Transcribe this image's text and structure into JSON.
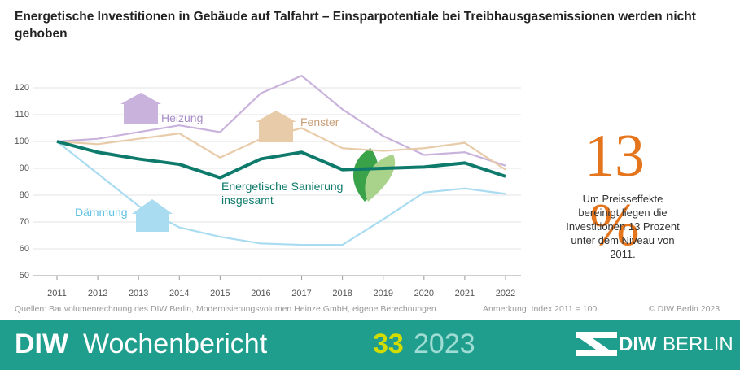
{
  "chart_data": {
    "type": "line",
    "title": "Energetische Investitionen in Gebäude auf Talfahrt – Einsparpotentiale bei Treibhausgasemissionen werden nicht gehoben",
    "categories": [
      "2011",
      "2012",
      "2013",
      "2014",
      "2015",
      "2016",
      "2017",
      "2018",
      "2019",
      "2020",
      "2021",
      "2022"
    ],
    "series": [
      {
        "name": "Heizung",
        "color": "#c9b3dc",
        "values": [
          100,
          101,
          103.5,
          106,
          103.5,
          118,
          124.5,
          112,
          102,
          95,
          96,
          91
        ]
      },
      {
        "name": "Fenster",
        "color": "#e8cba9",
        "values": [
          100,
          99,
          101,
          103,
          94,
          101,
          105,
          97.5,
          96.5,
          97.5,
          99.5,
          89.5
        ]
      },
      {
        "name": "Dämmung",
        "color": "#aadcf1",
        "values": [
          100,
          88,
          76,
          68,
          64.5,
          62,
          61.5,
          61.5,
          71,
          81,
          82.5,
          80.5
        ]
      },
      {
        "name": "Energetische Sanierung insgesamt",
        "color": "#0e7a6b",
        "values": [
          100,
          96,
          93.5,
          91.5,
          86.5,
          93.5,
          96,
          89.5,
          90,
          90.5,
          92,
          87
        ]
      }
    ],
    "ylim": [
      50,
      120
    ],
    "yticks": [
      50,
      60,
      70,
      80,
      90,
      100,
      110,
      120
    ],
    "grid": true,
    "source": "Quellen: Bauvolumenrechnung des DIW Berlin, Modernisierungsvolumen Heinze GmbH, eigene Berechnungen.",
    "note": "Anmerkung: Index 2011 = 100.",
    "copyright": "© DIW Berlin 2023"
  },
  "callout": {
    "headline": "13 %",
    "text": "Um Preisseffekte bereinigt liegen die Investitionen 13 Prozent unter dem Niveau von 2011."
  },
  "footer": {
    "brand": "DIW",
    "publication": "Wochenbericht",
    "issue": "33",
    "year": "2023",
    "logo": "DIW",
    "logo_city": "BERLIN"
  }
}
